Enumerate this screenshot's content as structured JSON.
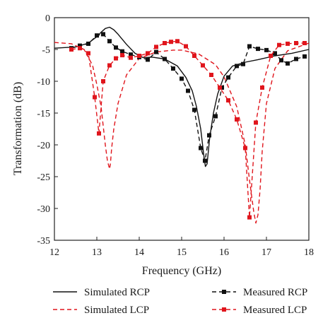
{
  "chart_data": {
    "type": "line",
    "title": "",
    "xlabel": "Frequency (GHz)",
    "ylabel": "Transformation (dB)",
    "xlim": [
      12,
      18
    ],
    "ylim": [
      -35,
      0
    ],
    "xticks": [
      12,
      13,
      14,
      15,
      16,
      17,
      18
    ],
    "yticks": [
      -35,
      -30,
      -25,
      -20,
      -15,
      -10,
      -5,
      0
    ],
    "x_tick_labels": [
      "12",
      "13",
      "14",
      "15",
      "16",
      "17",
      "18"
    ],
    "y_tick_labels": [
      "-35",
      "-30",
      "-25",
      "-20",
      "-15",
      "-10",
      "-5",
      "0"
    ],
    "grid": false,
    "legend_placement": "bottom",
    "colors": {
      "black": "#111111",
      "red": "#e0151c",
      "frame": "#222222"
    },
    "series": [
      {
        "name": "Simulated RCP",
        "style": "solid",
        "color": "#111111",
        "marker": "none",
        "x": [
          12.0,
          12.5,
          12.8,
          13.0,
          13.1,
          13.2,
          13.3,
          13.4,
          13.5,
          13.7,
          13.9,
          14.1,
          14.3,
          14.6,
          14.9,
          15.1,
          15.25,
          15.35,
          15.45,
          15.52,
          15.56,
          15.6,
          15.66,
          15.75,
          15.85,
          16.0,
          16.2,
          16.5,
          16.8,
          17.2,
          17.6,
          18.0
        ],
        "y": [
          -4.8,
          -4.6,
          -4.0,
          -3.0,
          -2.3,
          -1.7,
          -1.5,
          -1.9,
          -2.6,
          -4.2,
          -5.6,
          -6.3,
          -6.2,
          -6.5,
          -7.6,
          -9.4,
          -11.5,
          -14.0,
          -17.5,
          -21.5,
          -23.4,
          -23.0,
          -19.0,
          -15.0,
          -12.0,
          -9.2,
          -7.6,
          -7.0,
          -6.6,
          -6.0,
          -5.6,
          -5.0
        ]
      },
      {
        "name": "Simulated LCP",
        "style": "dashed",
        "color": "#e0151c",
        "marker": "none",
        "x": [
          12.0,
          12.4,
          12.7,
          12.9,
          13.0,
          13.1,
          13.15,
          13.2,
          13.25,
          13.3,
          13.32,
          13.35,
          13.4,
          13.5,
          13.7,
          14.0,
          14.4,
          14.8,
          15.0,
          15.4,
          15.8,
          16.0,
          16.3,
          16.5,
          16.6,
          16.7,
          16.75,
          16.8,
          16.85,
          16.9,
          17.0,
          17.2,
          17.5,
          18.0
        ],
        "y": [
          -3.9,
          -4.1,
          -5.0,
          -7.5,
          -10.5,
          -14.0,
          -17.0,
          -20.0,
          -22.5,
          -23.8,
          -23.0,
          -20.5,
          -17.5,
          -13.5,
          -9.0,
          -6.4,
          -5.4,
          -5.1,
          -5.1,
          -5.7,
          -7.4,
          -9.3,
          -14.0,
          -20.0,
          -25.5,
          -30.5,
          -32.3,
          -31.0,
          -27.0,
          -21.0,
          -13.5,
          -8.0,
          -5.2,
          -4.0
        ]
      },
      {
        "name": "Measured RCP",
        "style": "dashed",
        "color": "#111111",
        "marker": "square",
        "x": [
          12.4,
          12.6,
          12.8,
          13.0,
          13.15,
          13.3,
          13.45,
          13.6,
          13.8,
          14.0,
          14.2,
          14.4,
          14.6,
          14.8,
          15.0,
          15.15,
          15.3,
          15.45,
          15.55,
          15.65,
          15.8,
          15.95,
          16.1,
          16.3,
          16.45,
          16.6,
          16.8,
          17.0,
          17.2,
          17.35,
          17.5,
          17.7,
          17.9
        ],
        "y": [
          -4.8,
          -4.4,
          -4.1,
          -2.8,
          -2.6,
          -3.7,
          -4.7,
          -5.3,
          -5.8,
          -6.2,
          -6.6,
          -5.4,
          -6.5,
          -8.0,
          -9.6,
          -11.5,
          -14.5,
          -20.5,
          -22.5,
          -18.5,
          -15.5,
          -11.0,
          -9.4,
          -7.6,
          -7.3,
          -4.5,
          -4.9,
          -5.1,
          -5.6,
          -6.7,
          -7.2,
          -6.5,
          -6.1
        ]
      },
      {
        "name": "Measured LCP",
        "style": "dashed",
        "color": "#e0151c",
        "marker": "square",
        "x": [
          12.4,
          12.6,
          12.8,
          12.95,
          13.05,
          13.15,
          13.3,
          13.45,
          13.6,
          13.8,
          14.0,
          14.2,
          14.4,
          14.6,
          14.75,
          14.9,
          15.1,
          15.3,
          15.5,
          15.7,
          15.9,
          16.1,
          16.3,
          16.5,
          16.6,
          16.75,
          16.9,
          17.1,
          17.3,
          17.5,
          17.7,
          17.9
        ],
        "y": [
          -5.0,
          -4.8,
          -5.6,
          -12.5,
          -18.2,
          -10.0,
          -7.5,
          -6.4,
          -5.9,
          -6.3,
          -6.0,
          -5.6,
          -4.6,
          -4.0,
          -3.8,
          -3.7,
          -4.5,
          -6.0,
          -7.5,
          -9.0,
          -11.0,
          -13.0,
          -16.0,
          -20.5,
          -31.4,
          -16.5,
          -11.0,
          -6.0,
          -4.3,
          -4.1,
          -4.0,
          -4.0
        ]
      }
    ]
  }
}
